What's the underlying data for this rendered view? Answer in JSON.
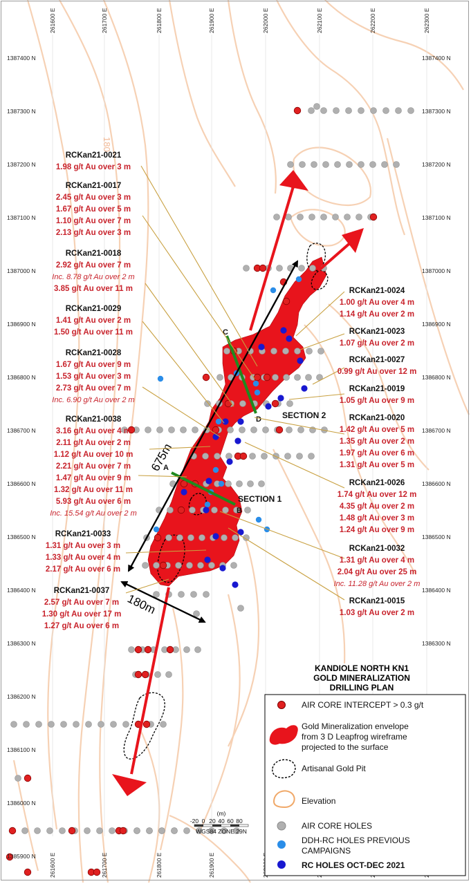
{
  "map": {
    "title": [
      "KANDIOLE NORTH KN1",
      "GOLD MINERALIZATION",
      "DRILLING PLAN"
    ],
    "eastings": [
      "261600 E",
      "261700 E",
      "261800 E",
      "261900 E",
      "262000 E",
      "262100 E",
      "262200 E",
      "262300 E"
    ],
    "northings": [
      "1387400 N",
      "1387300 N",
      "1387200 N",
      "1387100 N",
      "1387000 N",
      "1386900 N",
      "1386800 N",
      "1386700 N",
      "1386600 N",
      "1386500 N",
      "1386400 N",
      "1386300 N",
      "1386200 N",
      "1386100 N",
      "1386000 N",
      "1385900 N"
    ],
    "contour_label": "180",
    "dimensions": {
      "length": "675m",
      "width": "180m"
    },
    "sections": {
      "s1": "SECTION 1",
      "s2": "SECTION 2",
      "a": "A",
      "b": "B",
      "c": "C",
      "d": "D"
    },
    "scale": {
      "unit": "(m)",
      "ticks": [
        "-20",
        "0",
        "20",
        "40",
        "60",
        "80"
      ],
      "datum": "WGS84 ZONE 29N"
    },
    "colors": {
      "envelope": "#e8141c",
      "intercept": "#e02020",
      "air_core": "#b0b0b0",
      "ddh_rc": "#2a8de8",
      "rc_2021": "#1818d0",
      "contour": "#f5c9a8",
      "leader": "#c8a040",
      "section_line": "#1f8a1f"
    },
    "legend": {
      "intercept": "AIR CORE INTERCEPT > 0.3 g/t",
      "envelope": [
        "Gold Mineralization envelope",
        "from 3 D Leapfrog wireframe",
        "projected to the surface"
      ],
      "pit": "Artisanal Gold Pit",
      "elevation": "Elevation",
      "air_core": "AIR CORE HOLES",
      "ddh_rc": [
        "DDH-RC HOLES PREVIOUS",
        "CAMPAIGNS"
      ],
      "rc_2021": "RC HOLES OCT-DEC 2021"
    },
    "annotations_left": [
      {
        "hole": "RCKan21-0021",
        "lines": [
          {
            "t": "1.98 g/t Au over 3 m",
            "i": false
          }
        ]
      },
      {
        "hole": "RCKan21-0017",
        "lines": [
          {
            "t": "2.45 g/t Au over 3 m",
            "i": false
          },
          {
            "t": "1.67 g/t Au over 5 m",
            "i": false
          },
          {
            "t": "1.10 g/t Au over 7 m",
            "i": false
          },
          {
            "t": "2.13 g/t Au over 3 m",
            "i": false
          }
        ]
      },
      {
        "hole": "RCKan21-0018",
        "lines": [
          {
            "t": "2.92 g/t Au over 7 m",
            "i": false
          },
          {
            "t": "Inc. 8.78 g/t Au over 2 m",
            "i": true
          },
          {
            "t": "3.85 g/t Au over 11 m",
            "i": false
          }
        ]
      },
      {
        "hole": "RCKan21-0029",
        "lines": [
          {
            "t": "1.41 g/t Au over 2 m",
            "i": false
          },
          {
            "t": "1.50 g/t Au over 11 m",
            "i": false
          }
        ]
      },
      {
        "hole": "RCKan21-0028",
        "lines": [
          {
            "t": "1.67 g/t Au over 9 m",
            "i": false
          },
          {
            "t": "1.53 g/t Au over 3 m",
            "i": false
          },
          {
            "t": "2.73 g/t Au over 7 m",
            "i": false
          },
          {
            "t": "Inc. 6.90 g/t Au over 2 m",
            "i": true
          }
        ]
      },
      {
        "hole": "RCKan21-0038",
        "lines": [
          {
            "t": "3.16 g/t Au over 4 m",
            "i": false
          },
          {
            "t": "2.11 g/t Au over 2 m",
            "i": false
          },
          {
            "t": "1.12 g/t Au over 10 m",
            "i": false
          },
          {
            "t": "2.21 g/t Au over 7 m",
            "i": false
          },
          {
            "t": "1.47 g/t Au over 9 m",
            "i": false
          },
          {
            "t": "1.32 g/t Au over 11 m",
            "i": false
          },
          {
            "t": "5.93 g/t Au over 6 m",
            "i": false
          },
          {
            "t": "Inc. 15.54 g/t Au over 2 m",
            "i": true
          }
        ]
      },
      {
        "hole": "RCKan21-0033",
        "lines": [
          {
            "t": "1.31 g/t Au over 3 m",
            "i": false
          },
          {
            "t": "1.33 g/t Au over 4 m",
            "i": false
          },
          {
            "t": "2.17 g/t Au over 6 m",
            "i": false
          }
        ]
      },
      {
        "hole": "RCKan21-0037",
        "lines": [
          {
            "t": "2.57 g/t Au over 7 m",
            "i": false
          },
          {
            "t": "1.30 g/t Au over 17 m",
            "i": false
          },
          {
            "t": "1.27 g/t Au over 6 m",
            "i": false
          }
        ]
      }
    ],
    "annotations_right": [
      {
        "hole": "RCKan21-0024",
        "lines": [
          {
            "t": "1.00 g/t Au over 4 m",
            "i": false
          },
          {
            "t": "1.14 g/t Au over 2 m",
            "i": false
          }
        ]
      },
      {
        "hole": "RCKan21-0023",
        "lines": [
          {
            "t": "1.07 g/t Au over 2 m",
            "i": false
          }
        ]
      },
      {
        "hole": "RCKan21-0027",
        "lines": [
          {
            "t": "0.99 g/t Au over 12 m",
            "i": false
          }
        ]
      },
      {
        "hole": "RCKan21-0019",
        "lines": [
          {
            "t": "1.05 g/t Au over 9 m",
            "i": false
          }
        ]
      },
      {
        "hole": "RCKan21-0020",
        "lines": [
          {
            "t": "1.42 g/t Au over 5 m",
            "i": false
          },
          {
            "t": "1.35 g/t Au over 2 m",
            "i": false
          },
          {
            "t": "1.97 g/t Au over 6 m",
            "i": false
          },
          {
            "t": "1.31 g/t Au over 5 m",
            "i": false
          }
        ]
      },
      {
        "hole": "RCKan21-0026",
        "lines": [
          {
            "t": "1.74 g/t Au over 12 m",
            "i": false
          },
          {
            "t": "4.35 g/t Au over 2 m",
            "i": false
          },
          {
            "t": "1.48 g/t Au over 3 m",
            "i": false
          },
          {
            "t": "1.24 g/t Au over 9 m",
            "i": false
          }
        ]
      },
      {
        "hole": "RCKan21-0032",
        "lines": [
          {
            "t": "1.31 g/t Au over 4 m",
            "i": false
          },
          {
            "t": "2.04 g/t Au over 25 m",
            "i": false
          },
          {
            "t": "Inc. 11.28 g/t Au over 2 m",
            "i": true
          }
        ]
      },
      {
        "hole": "RCKan21-0015",
        "lines": [
          {
            "t": "1.03 g/t Au over 2 m",
            "i": false
          }
        ]
      }
    ]
  }
}
